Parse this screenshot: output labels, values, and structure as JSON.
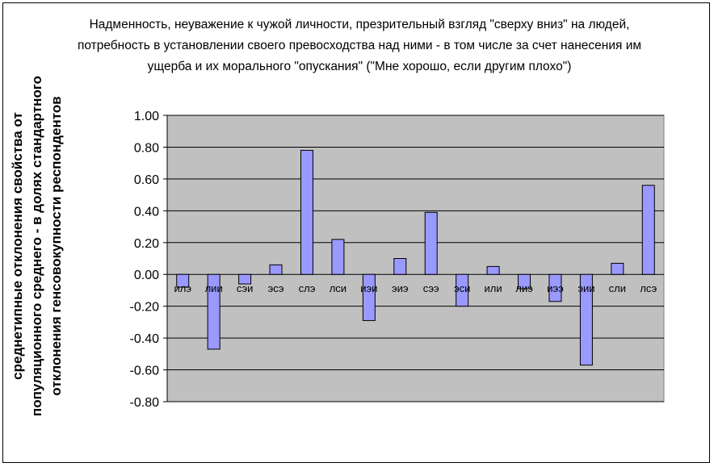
{
  "chart_data": {
    "type": "bar",
    "title": "Надменность, неуважение к чужой личности, презрительный взгляд \"сверху вниз\" на людей, потребность в установлении своего превосходства над ними - в том числе за счет нанесения им ущерба и их морального \"опускания\" (\"Мне хорошо, если другим плохо\")",
    "xlabel": "",
    "ylabel": "среднетипные отклонения свойства от популяционного среднего - в долях стандартного отклонения генсовокупности респондентов",
    "categories": [
      "илэ",
      "лии",
      "сэи",
      "эсэ",
      "слэ",
      "лси",
      "иэи",
      "эиэ",
      "сээ",
      "эси",
      "или",
      "лиэ",
      "иээ",
      "эии",
      "сли",
      "лсэ"
    ],
    "values": [
      -0.08,
      -0.47,
      -0.06,
      0.06,
      0.78,
      0.22,
      -0.29,
      0.1,
      0.39,
      -0.2,
      0.05,
      -0.09,
      -0.17,
      -0.57,
      0.07,
      0.56
    ],
    "ylim": [
      -0.8,
      1.0
    ],
    "yticks": [
      "1.00",
      "0.80",
      "0.60",
      "0.40",
      "0.20",
      "0.00",
      "-0.20",
      "-0.40",
      "-0.60",
      "-0.80"
    ],
    "grid": true,
    "legend": "none",
    "colors": {
      "bar": "#9999ff",
      "plot_bg": "#c0c0c0",
      "gridline": "#000000"
    }
  }
}
